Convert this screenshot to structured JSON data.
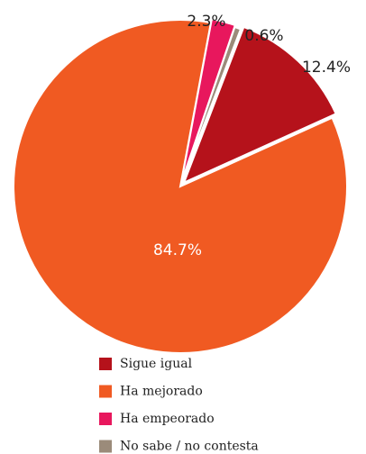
{
  "chart_data": {
    "type": "pie",
    "categories": [
      "Sigue igual",
      "Ha mejorado",
      "Ha empeorado",
      "No sabe / no contesta"
    ],
    "values": [
      12.4,
      84.7,
      2.3,
      0.6
    ],
    "value_labels": [
      "12.4%",
      "84.7%",
      "2.3%",
      "0.6%"
    ],
    "colors": [
      "#b5121b",
      "#f05a22",
      "#e8175d",
      "#9b8b7a"
    ],
    "legend": "bottom"
  }
}
